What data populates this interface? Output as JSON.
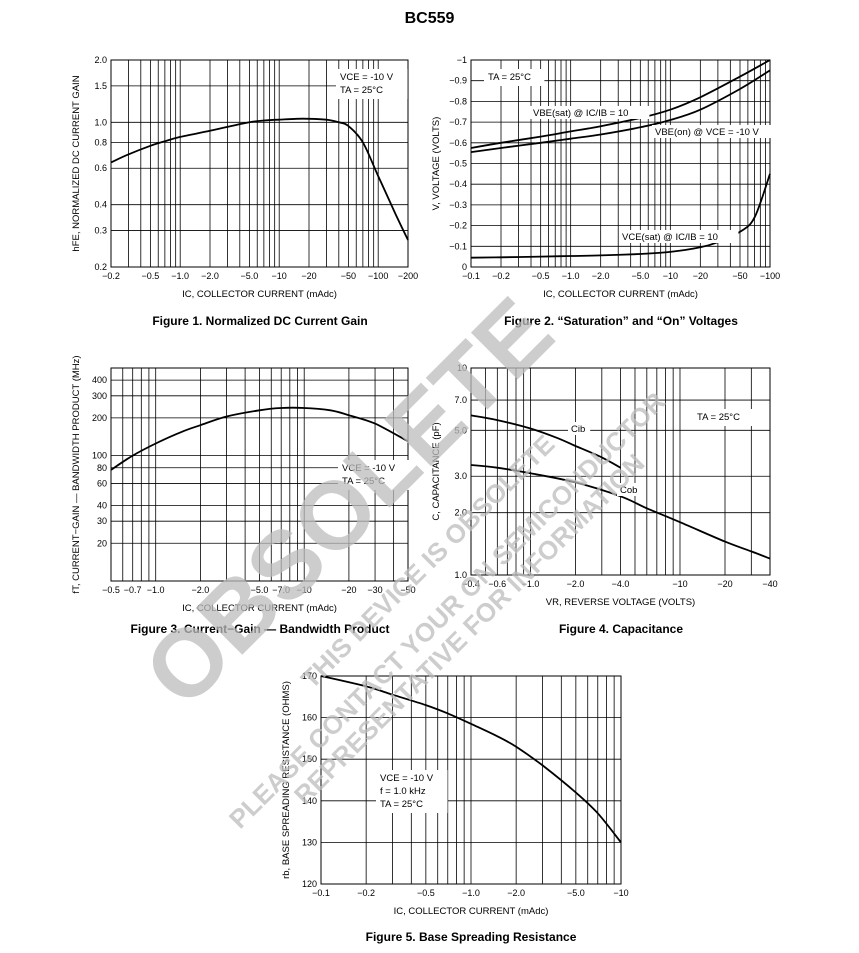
{
  "page_title": "BC559",
  "watermark": {
    "big": "OBSOLETE",
    "line1": "THIS DEVICE IS OBSOLETE",
    "line2": "PLEASE CONTACT YOUR ON SEMICONDUCTOR",
    "line3": "REPRESENTATIVE FOR INFORMATION"
  },
  "chart_data": [
    {
      "id": "fig1",
      "caption": "Figure 1. Normalized DC Current Gain",
      "type": "line",
      "xscale": "log",
      "yscale": "log",
      "xlim": [
        -0.2,
        -200
      ],
      "ylim": [
        0.2,
        2.0
      ],
      "xlabel": "IC, COLLECTOR CURRENT (mAdc)",
      "ylabel": "hFE, NORMALIZED DC CURRENT GAIN",
      "xticks": [
        -0.2,
        -0.5,
        -1.0,
        -2.0,
        -5.0,
        -10,
        -20,
        -50,
        -100,
        -200
      ],
      "yticks": [
        0.2,
        0.3,
        0.4,
        0.6,
        0.8,
        1.0,
        1.5,
        2.0
      ],
      "grid": true,
      "annotations": [
        "VCE = -10 V",
        "TA = 25°C"
      ],
      "series": [
        {
          "x": [
            -0.2,
            -0.3,
            -0.5,
            -0.7,
            -1.0,
            -2.0,
            -3.0,
            -5.0,
            -7.0,
            -10,
            -15,
            -20,
            -30,
            -40,
            -50,
            -70,
            -100,
            -150,
            -200
          ],
          "y": [
            0.64,
            0.7,
            0.77,
            0.81,
            0.85,
            0.91,
            0.95,
            1.0,
            1.02,
            1.03,
            1.04,
            1.04,
            1.03,
            1.0,
            0.96,
            0.8,
            0.55,
            0.36,
            0.27
          ]
        }
      ]
    },
    {
      "id": "fig2",
      "caption": "Figure 2. “Saturation” and “On” Voltages",
      "type": "line",
      "xscale": "log",
      "yscale": "linear",
      "xlim": [
        -0.1,
        -100
      ],
      "ylim": [
        0,
        -1.0
      ],
      "xlabel": "IC, COLLECTOR CURRENT (mAdc)",
      "ylabel": "V, VOLTAGE (VOLTS)",
      "xticks": [
        -0.1,
        -0.2,
        -0.5,
        -1.0,
        -2.0,
        -5.0,
        -10,
        -20,
        -50,
        -100
      ],
      "yticks": [
        0,
        -0.1,
        -0.2,
        -0.3,
        -0.4,
        -0.5,
        -0.6,
        -0.7,
        -0.8,
        -0.9,
        -1.0
      ],
      "grid": true,
      "annotations": [
        "TA = 25°C"
      ],
      "series": [
        {
          "name": "VBE(sat) @ IC/IB = 10",
          "x": [
            -0.1,
            -0.2,
            -0.5,
            -1.0,
            -2.0,
            -5.0,
            -10,
            -20,
            -50,
            -100
          ],
          "y": [
            -0.575,
            -0.6,
            -0.63,
            -0.655,
            -0.68,
            -0.72,
            -0.76,
            -0.82,
            -0.92,
            -1.02
          ]
        },
        {
          "name": "VBE(on) @ VCE = -10 V",
          "x": [
            -0.1,
            -0.2,
            -0.5,
            -1.0,
            -2.0,
            -5.0,
            -10,
            -20,
            -50,
            -100
          ],
          "y": [
            -0.555,
            -0.575,
            -0.6,
            -0.62,
            -0.64,
            -0.675,
            -0.71,
            -0.76,
            -0.86,
            -0.95
          ]
        },
        {
          "name": "VCE(sat) @ IC/IB = 10",
          "x": [
            -0.1,
            -0.2,
            -0.5,
            -1.0,
            -2.0,
            -5.0,
            -10,
            -20,
            -30,
            -50,
            -70,
            -100
          ],
          "y": [
            -0.045,
            -0.047,
            -0.05,
            -0.053,
            -0.056,
            -0.063,
            -0.073,
            -0.095,
            -0.12,
            -0.17,
            -0.24,
            -0.45
          ]
        }
      ]
    },
    {
      "id": "fig3",
      "caption": "Figure 3. Current−Gain — Bandwidth Product",
      "type": "line",
      "xscale": "log",
      "yscale": "log",
      "xlim": [
        -0.5,
        -50
      ],
      "ylim": [
        10,
        500
      ],
      "xlabel": "IC, COLLECTOR CURRENT (mAdc)",
      "ylabel": "fT, CURRENT−GAIN — BANDWIDTH PRODUCT (MHz)",
      "xticks": [
        -0.5,
        -0.7,
        -1.0,
        -2.0,
        -5.0,
        -7.0,
        -10,
        -20,
        -30,
        -50
      ],
      "yticks": [
        20,
        30,
        40,
        60,
        80,
        100,
        200,
        300,
        400
      ],
      "grid": true,
      "annotations": [
        "VCE = -10 V",
        "TA = 25°C"
      ],
      "series": [
        {
          "x": [
            -0.5,
            -0.7,
            -1.0,
            -1.5,
            -2.0,
            -3.0,
            -5.0,
            -7.0,
            -10,
            -15,
            -20,
            -30,
            -50
          ],
          "y": [
            77,
            100,
            125,
            155,
            175,
            205,
            230,
            240,
            240,
            230,
            210,
            180,
            130
          ]
        }
      ]
    },
    {
      "id": "fig4",
      "caption": "Figure 4. Capacitance",
      "type": "line",
      "xscale": "log",
      "yscale": "log",
      "xlim": [
        -0.4,
        -40
      ],
      "ylim": [
        1.0,
        10
      ],
      "xlabel": "VR, REVERSE VOLTAGE (VOLTS)",
      "ylabel": "C, CAPACITANCE (pF)",
      "xticks": [
        -0.4,
        -0.6,
        -1.0,
        -2.0,
        -4.0,
        -10,
        -20,
        -40
      ],
      "yticks": [
        1.0,
        2.0,
        3.0,
        5.0,
        7.0,
        10
      ],
      "grid": true,
      "annotations": [
        "TA = 25°C"
      ],
      "series": [
        {
          "name": "Cib",
          "x": [
            -0.4,
            -0.6,
            -1.0,
            -1.5,
            -2.0,
            -3.0,
            -4.0
          ],
          "y": [
            5.9,
            5.6,
            5.1,
            4.6,
            4.2,
            3.7,
            3.3
          ]
        },
        {
          "name": "Cob",
          "x": [
            -0.4,
            -0.6,
            -1.0,
            -2.0,
            -4.0,
            -6.0,
            -10,
            -20,
            -30,
            -40
          ],
          "y": [
            3.4,
            3.3,
            3.1,
            2.8,
            2.4,
            2.1,
            1.8,
            1.45,
            1.3,
            1.2
          ]
        }
      ]
    },
    {
      "id": "fig5",
      "caption": "Figure 5. Base Spreading Resistance",
      "type": "line",
      "xscale": "log",
      "yscale": "linear",
      "xlim": [
        -0.1,
        -10
      ],
      "ylim": [
        120,
        170
      ],
      "xlabel": "IC, COLLECTOR CURRENT (mAdc)",
      "ylabel": "rb, BASE SPREADING RESISTANCE (OHMS)",
      "xticks": [
        -0.1,
        -0.2,
        -0.5,
        -1.0,
        -2.0,
        -5.0,
        -10
      ],
      "yticks": [
        120,
        130,
        140,
        150,
        160,
        170
      ],
      "grid": true,
      "annotations": [
        "VCE = -10 V",
        "f = 1.0 kHz",
        "TA = 25°C"
      ],
      "series": [
        {
          "x": [
            -0.1,
            -0.2,
            -0.3,
            -0.5,
            -0.7,
            -1.0,
            -1.5,
            -2.0,
            -3.0,
            -5.0,
            -7.0,
            -10
          ],
          "y": [
            170,
            167.5,
            165.5,
            163,
            161,
            158.5,
            155.5,
            153,
            148.5,
            142,
            137,
            130
          ]
        }
      ]
    }
  ]
}
